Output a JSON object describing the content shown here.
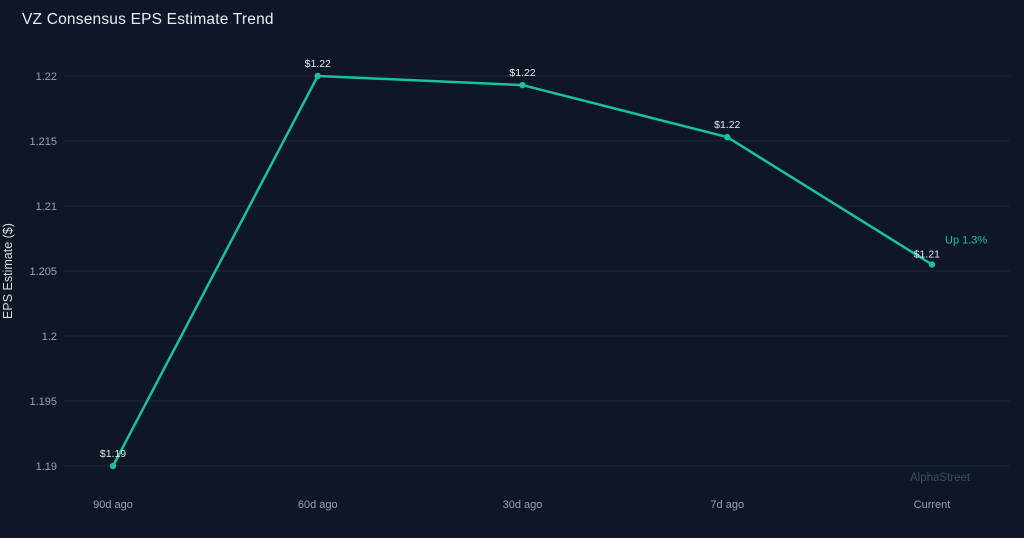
{
  "header": {
    "title": "VZ Consensus EPS Estimate Trend"
  },
  "watermark": "AlphaStreet",
  "colors": {
    "background": "#0e1726",
    "grid": "#1a2638",
    "tick": "#97a1b2",
    "label": "#e3e8ef",
    "axis_title": "#d5dbe4",
    "accent": "#1ac0a0",
    "watermark": "#3e4a5e"
  },
  "chart_data": {
    "type": "line",
    "title": "VZ Consensus EPS Estimate Trend",
    "xlabel": "",
    "ylabel": "EPS Estimate ($)",
    "categories": [
      "90d ago",
      "60d ago",
      "30d ago",
      "7d ago",
      "Current"
    ],
    "series": [
      {
        "name": "Consensus EPS Estimate",
        "values": [
          1.19,
          1.22,
          1.2193,
          1.2153,
          1.2055
        ],
        "point_labels": [
          "$1.19",
          "$1.22",
          "$1.22",
          "$1.22",
          "$1.21"
        ],
        "color": "#1ac0a0"
      }
    ],
    "annotation": {
      "text": "Up 1.3%",
      "color": "#1ac0a0",
      "attach_index": 4
    },
    "yticks": [
      1.19,
      1.195,
      1.2,
      1.205,
      1.21,
      1.215,
      1.22
    ],
    "ytick_labels": [
      "1.19",
      "1.195",
      "1.2",
      "1.205",
      "1.21",
      "1.215",
      "1.22"
    ],
    "ylim": [
      1.19,
      1.22
    ],
    "grid": true,
    "legend": false
  }
}
